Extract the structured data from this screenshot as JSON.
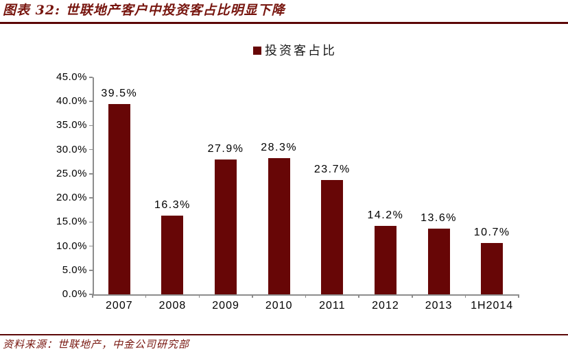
{
  "header": {
    "title": "图表 32: 世联地产客户中投资客占比明显下降"
  },
  "legend": {
    "label": "投资客占比"
  },
  "footer": {
    "source": "资料来源：世联地产，中金公司研究部"
  },
  "colors": {
    "bar": "#670606",
    "accent_text": "#77150e",
    "rule": "#5b0606",
    "axis": "#8c8c8c",
    "label": "#000000"
  },
  "chart_data": {
    "type": "bar",
    "title": "投资客占比",
    "categories": [
      "2007",
      "2008",
      "2009",
      "2010",
      "2011",
      "2012",
      "2013",
      "1H2014"
    ],
    "values": [
      39.5,
      16.3,
      27.9,
      28.3,
      23.7,
      14.2,
      13.6,
      10.7
    ],
    "value_labels": [
      "39.5%",
      "16.3%",
      "27.9%",
      "28.3%",
      "23.7%",
      "14.2%",
      "13.6%",
      "10.7%"
    ],
    "xlabel": "",
    "ylabel": "",
    "ylim": [
      0,
      45
    ],
    "ytick_step": 5,
    "ytick_labels": [
      "0.0%",
      "5.0%",
      "10.0%",
      "15.0%",
      "20.0%",
      "25.0%",
      "30.0%",
      "35.0%",
      "40.0%",
      "45.0%"
    ],
    "grid": false,
    "legend_position": "top-center",
    "bar_color": "#670606"
  }
}
